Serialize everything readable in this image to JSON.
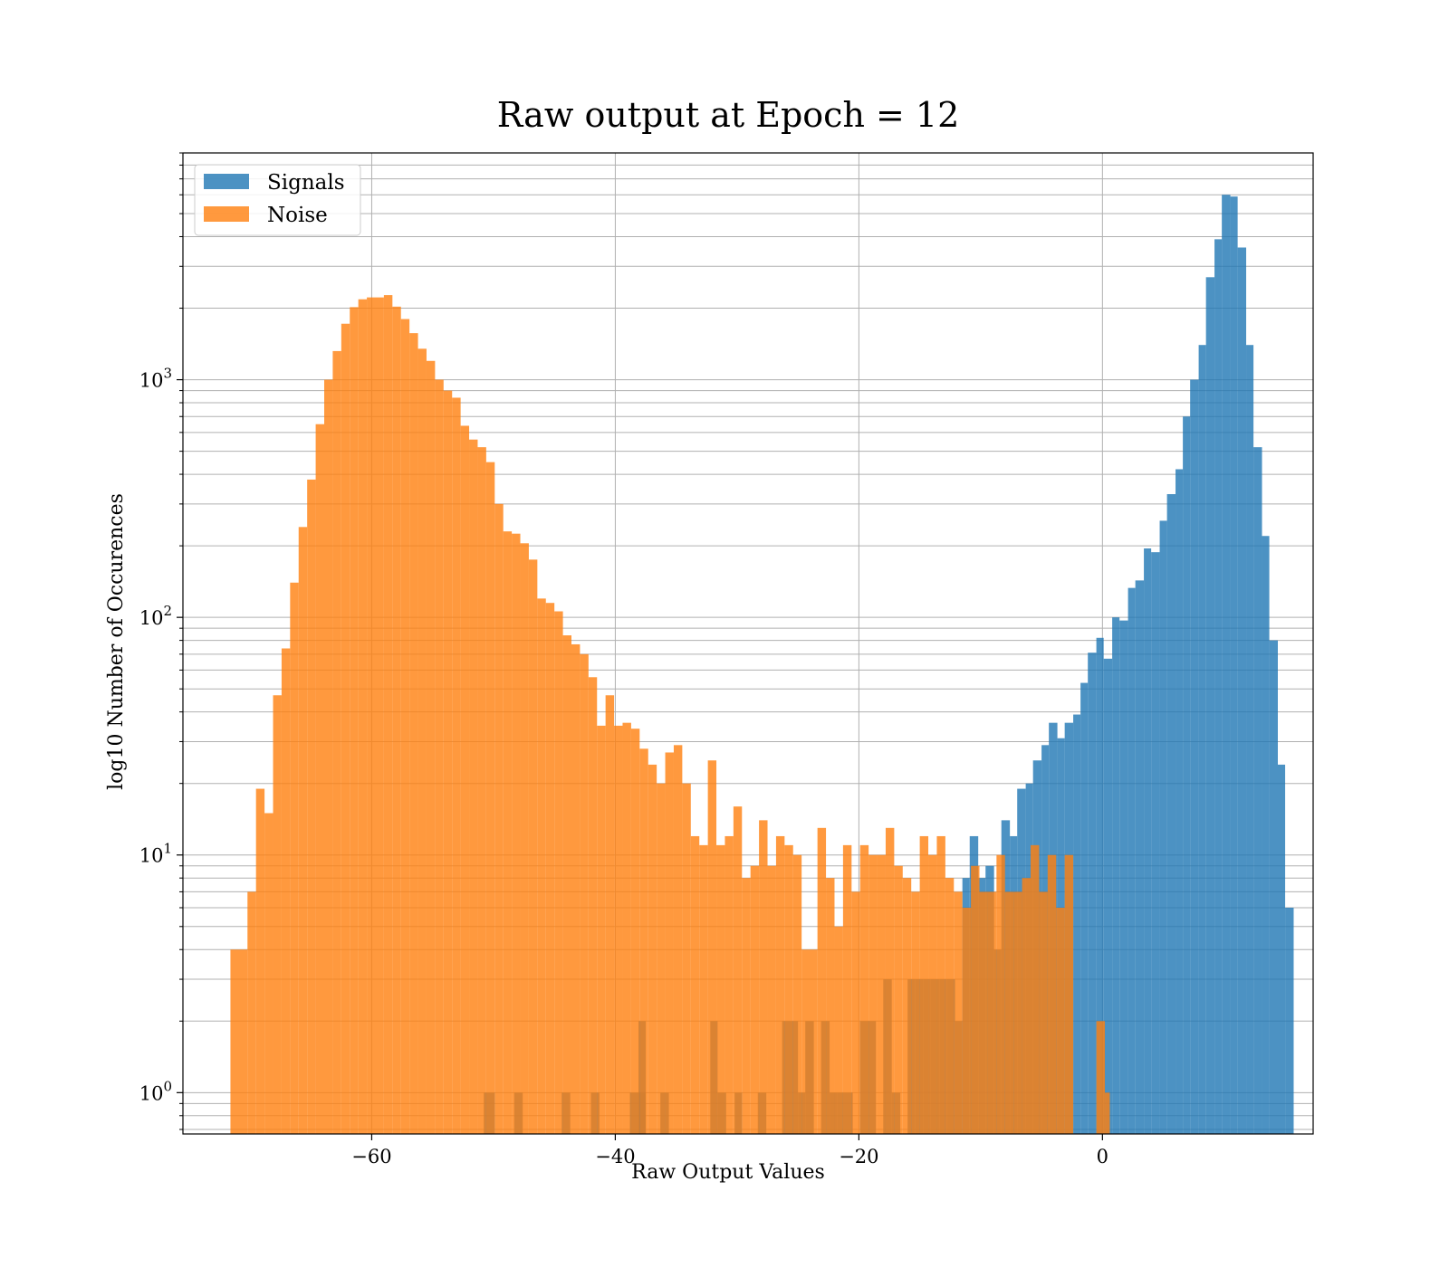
{
  "chart_data": {
    "type": "bar",
    "title": "Raw output at Epoch = 12",
    "xlabel": "Raw Output Values",
    "ylabel": "log10 Number of Occurences",
    "xlim": [
      -75.5,
      17.3
    ],
    "ylim": [
      0.67,
      9000
    ],
    "yscale": "log",
    "grid": true,
    "legend_position": "top-left",
    "x_ticks": [
      {
        "value": -60,
        "label": "−60"
      },
      {
        "value": -40,
        "label": "−40"
      },
      {
        "value": -20,
        "label": "−20"
      },
      {
        "value": 0,
        "label": "0"
      }
    ],
    "y_ticks": [
      {
        "value": 1,
        "base": "10",
        "exp": "0"
      },
      {
        "value": 10,
        "base": "10",
        "exp": "1"
      },
      {
        "value": 100,
        "base": "10",
        "exp": "2"
      },
      {
        "value": 1000,
        "base": "10",
        "exp": "3"
      }
    ],
    "series": [
      {
        "name": "Signals",
        "color": "#1f77b4",
        "opacity": 0.8,
        "bins": [
          [
            -50.8,
            -49.9,
            1
          ],
          [
            -48.3,
            -47.6,
            1
          ],
          [
            -44.4,
            -43.7,
            1
          ],
          [
            -42.0,
            -41.3,
            1
          ],
          [
            -38.8,
            -37.5,
            1
          ],
          [
            -38.1,
            -37.5,
            2
          ],
          [
            -36.3,
            -35.6,
            1
          ],
          [
            -32.2,
            -31.6,
            2
          ],
          [
            -31.6,
            -30.9,
            1
          ],
          [
            -30.2,
            -29.6,
            1
          ],
          [
            -28.3,
            -27.6,
            1
          ],
          [
            -26.3,
            -25.0,
            2
          ],
          [
            -25.0,
            -24.4,
            1
          ],
          [
            -24.4,
            -23.7,
            2
          ],
          [
            -23.1,
            -22.4,
            2
          ],
          [
            -22.4,
            -21.8,
            1
          ],
          [
            -21.8,
            -20.5,
            1
          ],
          [
            -19.9,
            -18.6,
            2
          ],
          [
            -18.0,
            -17.3,
            3
          ],
          [
            -17.3,
            -16.6,
            1
          ],
          [
            -16.0,
            -15.4,
            3
          ],
          [
            -15.4,
            -14.7,
            3
          ],
          [
            -14.7,
            -14.1,
            3
          ],
          [
            -14.1,
            -13.4,
            3
          ],
          [
            -13.4,
            -12.8,
            3
          ],
          [
            -12.8,
            -12.1,
            3
          ],
          [
            -12.1,
            -11.5,
            2
          ],
          [
            -11.5,
            -10.9,
            8
          ],
          [
            -10.9,
            -10.2,
            12
          ],
          [
            -10.2,
            -9.6,
            8
          ],
          [
            -9.6,
            -8.9,
            9
          ],
          [
            -8.9,
            -8.3,
            4
          ],
          [
            -8.3,
            -7.6,
            14
          ],
          [
            -7.6,
            -7.0,
            12
          ],
          [
            -7.0,
            -6.3,
            19
          ],
          [
            -6.3,
            -5.7,
            20
          ],
          [
            -5.7,
            -5.0,
            25
          ],
          [
            -5.0,
            -4.4,
            29
          ],
          [
            -4.4,
            -3.7,
            36
          ],
          [
            -3.7,
            -3.1,
            31
          ],
          [
            -3.1,
            -2.4,
            36
          ],
          [
            -2.4,
            -1.8,
            39
          ],
          [
            -1.8,
            -1.2,
            53
          ],
          [
            -1.2,
            -0.5,
            71
          ],
          [
            -0.5,
            0.1,
            82
          ],
          [
            0.1,
            0.8,
            67
          ],
          [
            0.8,
            1.4,
            100
          ],
          [
            1.4,
            2.1,
            97
          ],
          [
            2.1,
            2.7,
            133
          ],
          [
            2.7,
            3.4,
            143
          ],
          [
            3.4,
            4.0,
            195
          ],
          [
            4.0,
            4.7,
            188
          ],
          [
            4.7,
            5.3,
            255
          ],
          [
            5.3,
            6.0,
            330
          ],
          [
            6.0,
            6.6,
            420
          ],
          [
            6.6,
            7.2,
            700
          ],
          [
            7.2,
            7.9,
            1000
          ],
          [
            7.9,
            8.5,
            1400
          ],
          [
            8.5,
            9.2,
            2700
          ],
          [
            9.2,
            9.8,
            3900
          ],
          [
            9.8,
            10.5,
            6000
          ],
          [
            10.5,
            11.1,
            5900
          ],
          [
            11.1,
            11.8,
            3600
          ],
          [
            11.8,
            12.4,
            1400
          ],
          [
            12.4,
            13.1,
            520
          ],
          [
            13.1,
            13.7,
            220
          ],
          [
            13.7,
            14.4,
            80
          ],
          [
            14.4,
            15.0,
            24
          ],
          [
            15.0,
            15.7,
            6
          ]
        ]
      },
      {
        "name": "Noise",
        "color": "#ff7f0e",
        "opacity": 0.8,
        "bins": [
          [
            -71.6,
            -70.2,
            4
          ],
          [
            -70.2,
            -69.5,
            7
          ],
          [
            -69.5,
            -68.8,
            19
          ],
          [
            -68.8,
            -68.1,
            15
          ],
          [
            -68.1,
            -67.4,
            47
          ],
          [
            -67.4,
            -66.7,
            74
          ],
          [
            -66.7,
            -66.0,
            140
          ],
          [
            -66.0,
            -65.3,
            240
          ],
          [
            -65.3,
            -64.6,
            380
          ],
          [
            -64.6,
            -63.9,
            650
          ],
          [
            -63.9,
            -63.2,
            1000
          ],
          [
            -63.2,
            -62.5,
            1320
          ],
          [
            -62.5,
            -61.8,
            1720
          ],
          [
            -61.8,
            -61.1,
            2020
          ],
          [
            -61.1,
            -60.4,
            2180
          ],
          [
            -60.4,
            -59.0,
            2220
          ],
          [
            -59.0,
            -58.3,
            2270
          ],
          [
            -58.3,
            -57.6,
            2030
          ],
          [
            -57.6,
            -56.9,
            1800
          ],
          [
            -56.9,
            -56.2,
            1570
          ],
          [
            -56.2,
            -55.5,
            1350
          ],
          [
            -55.5,
            -54.8,
            1200
          ],
          [
            -54.8,
            -54.1,
            1000
          ],
          [
            -54.1,
            -53.4,
            900
          ],
          [
            -53.4,
            -52.7,
            840
          ],
          [
            -52.7,
            -52.0,
            640
          ],
          [
            -52.0,
            -51.3,
            560
          ],
          [
            -51.3,
            -50.6,
            520
          ],
          [
            -50.6,
            -49.9,
            450
          ],
          [
            -49.9,
            -49.2,
            300
          ],
          [
            -49.2,
            -48.5,
            230
          ],
          [
            -48.5,
            -47.8,
            225
          ],
          [
            -47.8,
            -47.1,
            205
          ],
          [
            -47.1,
            -46.4,
            175
          ],
          [
            -46.4,
            -45.7,
            120
          ],
          [
            -45.7,
            -45.0,
            115
          ],
          [
            -45.0,
            -44.3,
            106
          ],
          [
            -44.3,
            -43.6,
            84
          ],
          [
            -43.6,
            -42.9,
            77
          ],
          [
            -42.9,
            -42.2,
            70
          ],
          [
            -42.2,
            -41.5,
            56
          ],
          [
            -41.5,
            -40.8,
            35
          ],
          [
            -40.8,
            -40.1,
            47
          ],
          [
            -40.1,
            -39.4,
            35
          ],
          [
            -39.4,
            -38.7,
            36
          ],
          [
            -38.7,
            -38.0,
            34
          ],
          [
            -38.0,
            -37.3,
            28
          ],
          [
            -37.3,
            -36.6,
            24
          ],
          [
            -36.6,
            -35.9,
            20
          ],
          [
            -35.9,
            -35.2,
            27
          ],
          [
            -35.2,
            -34.5,
            29
          ],
          [
            -34.5,
            -33.8,
            20
          ],
          [
            -33.8,
            -33.1,
            12
          ],
          [
            -33.1,
            -32.4,
            11
          ],
          [
            -32.4,
            -31.7,
            25
          ],
          [
            -31.7,
            -31.0,
            11
          ],
          [
            -31.0,
            -30.3,
            12
          ],
          [
            -30.3,
            -29.6,
            16
          ],
          [
            -29.6,
            -28.9,
            8
          ],
          [
            -28.9,
            -28.2,
            9
          ],
          [
            -28.2,
            -27.5,
            14
          ],
          [
            -27.5,
            -26.8,
            9
          ],
          [
            -26.8,
            -26.1,
            12
          ],
          [
            -26.1,
            -25.4,
            11
          ],
          [
            -25.4,
            -24.7,
            10
          ],
          [
            -24.7,
            -23.4,
            4
          ],
          [
            -23.4,
            -22.7,
            13
          ],
          [
            -22.7,
            -22.0,
            8
          ],
          [
            -22.0,
            -21.3,
            5
          ],
          [
            -21.3,
            -20.6,
            11
          ],
          [
            -20.6,
            -19.9,
            7
          ],
          [
            -19.9,
            -19.2,
            11
          ],
          [
            -19.2,
            -18.5,
            10
          ],
          [
            -18.5,
            -17.8,
            10
          ],
          [
            -17.8,
            -17.1,
            13
          ],
          [
            -17.1,
            -16.4,
            9
          ],
          [
            -16.4,
            -15.7,
            8
          ],
          [
            -15.7,
            -15.0,
            7
          ],
          [
            -15.0,
            -14.3,
            12
          ],
          [
            -14.3,
            -13.6,
            10
          ],
          [
            -13.6,
            -12.9,
            12
          ],
          [
            -12.9,
            -12.2,
            8
          ],
          [
            -12.2,
            -11.5,
            7
          ],
          [
            -11.5,
            -10.8,
            6
          ],
          [
            -10.8,
            -10.1,
            9
          ],
          [
            -10.1,
            -9.4,
            7
          ],
          [
            -9.4,
            -8.7,
            7
          ],
          [
            -8.7,
            -8.0,
            10
          ],
          [
            -8.0,
            -7.3,
            7
          ],
          [
            -7.3,
            -6.6,
            7
          ],
          [
            -6.6,
            -5.9,
            8
          ],
          [
            -5.9,
            -5.2,
            11
          ],
          [
            -5.2,
            -4.5,
            7
          ],
          [
            -4.5,
            -3.8,
            10
          ],
          [
            -3.8,
            -3.1,
            6
          ],
          [
            -3.1,
            -2.4,
            10
          ],
          [
            -0.5,
            0.2,
            2
          ],
          [
            0.2,
            0.6,
            1
          ]
        ]
      }
    ]
  }
}
